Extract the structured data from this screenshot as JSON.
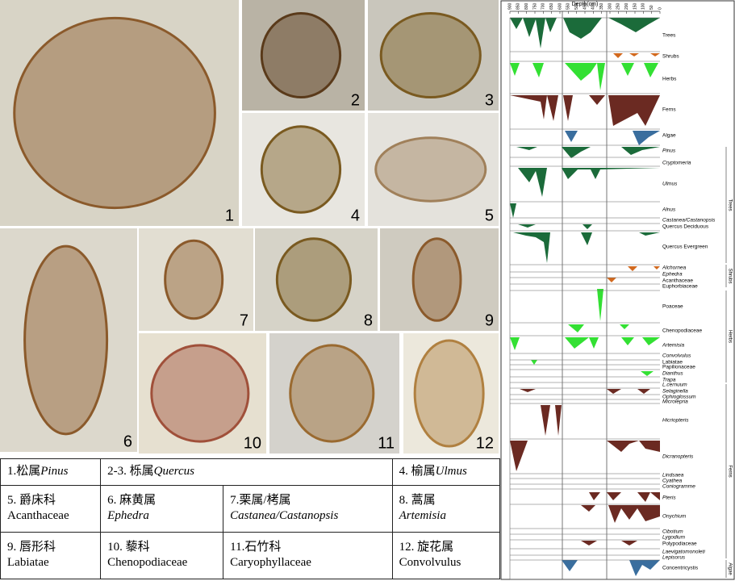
{
  "photos": [
    "1",
    "2",
    "3",
    "4",
    "5",
    "6",
    "7",
    "8",
    "9",
    "10",
    "11",
    "12"
  ],
  "table": {
    "rows": [
      [
        {
          "zh": "1.松属",
          "latin": "Pinus",
          "italic": true,
          "inline": true
        },
        {
          "zh": "2-3. 栎属",
          "latin": "Quercus",
          "italic": true,
          "inline": true
        },
        {
          "zh": "4. 榆属",
          "latin": "Ulmus",
          "italic": true,
          "inline": true
        }
      ],
      [
        {
          "zh": "5. 爵床科",
          "latin": "Acanthaceae",
          "italic": false
        },
        {
          "zh": "6. 麻黄属",
          "latin": "Ephedra",
          "italic": true
        },
        {
          "zh": "7.栗属/栲属",
          "latin": "Castanea/Castanopsis",
          "italic": true
        },
        {
          "zh": "8. 蒿属",
          "latin": "Artemisia",
          "italic": true
        }
      ],
      [
        {
          "zh": "9. 唇形科",
          "latin": "Labiatae",
          "italic": false
        },
        {
          "zh": "10. 藜科",
          "latin": "Chenopodiaceae",
          "italic": false
        },
        {
          "zh": "11.石竹科",
          "latin": "Caryophyllaceae",
          "italic": false
        },
        {
          "zh": "12. 旋花属",
          "latin": "Convolvulus",
          "italic": false
        }
      ]
    ]
  },
  "diagram": {
    "axis_label": "Depth(cm)",
    "depth_ticks": [
      900,
      850,
      800,
      750,
      700,
      650,
      600,
      550,
      500,
      450,
      400,
      350,
      300,
      250,
      200,
      150,
      100,
      50,
      0
    ],
    "taxa": [
      {
        "name": "Trees",
        "italic": false
      },
      {
        "name": "Shrubs",
        "italic": false
      },
      {
        "name": "Herbs",
        "italic": false
      },
      {
        "name": "Ferns",
        "italic": false
      },
      {
        "name": "Algae",
        "italic": false
      },
      {
        "name": "Pinus",
        "italic": true
      },
      {
        "name": "Cryptomeria",
        "italic": true
      },
      {
        "name": "Ulmus",
        "italic": true
      },
      {
        "name": "Alnus",
        "italic": true
      },
      {
        "name": "Castanea/Castanopsis",
        "italic": true
      },
      {
        "name": "Quercus Deciduous",
        "italic": false
      },
      {
        "name": "Quercus Evergreen",
        "italic": false
      },
      {
        "name": "Alchornea",
        "italic": true
      },
      {
        "name": "Ephedra",
        "italic": true
      },
      {
        "name": "Acanthaceae",
        "italic": false
      },
      {
        "name": "Euphorbiaceae",
        "italic": false
      },
      {
        "name": "Poaceae",
        "italic": false
      },
      {
        "name": "Chenopodiaceae",
        "italic": false
      },
      {
        "name": "Artemisia",
        "italic": true
      },
      {
        "name": "Convolvulus",
        "italic": true
      },
      {
        "name": "Labiatae",
        "italic": false
      },
      {
        "name": "Papilionaceae",
        "italic": false
      },
      {
        "name": "Dianthus",
        "italic": true
      },
      {
        "name": "Trapa",
        "italic": true
      },
      {
        "name": "L.cernuum",
        "italic": true
      },
      {
        "name": "Selaginella",
        "italic": true
      },
      {
        "name": "Ophioglossum",
        "italic": true
      },
      {
        "name": "Microlepria",
        "italic": true
      },
      {
        "name": "Hicriopteris",
        "italic": true
      },
      {
        "name": "Dicranopteris",
        "italic": true
      },
      {
        "name": "Lindsaea",
        "italic": true
      },
      {
        "name": "Cyathea",
        "italic": true
      },
      {
        "name": "Coniogramme",
        "italic": true
      },
      {
        "name": "Pteris",
        "italic": true
      },
      {
        "name": "Onychium",
        "italic": true
      },
      {
        "name": "Cibotium",
        "italic": true
      },
      {
        "name": "Lygodium",
        "italic": true
      },
      {
        "name": "Polypodiaceae",
        "italic": false
      },
      {
        "name": "Laevigatomonoleti",
        "italic": true
      },
      {
        "name": "Lepisorus",
        "italic": true
      },
      {
        "name": "Concentricystis",
        "italic": false
      }
    ],
    "groups": [
      "Trees",
      "Shrubs",
      "Herbs",
      "Ferns",
      "Algae"
    ]
  }
}
